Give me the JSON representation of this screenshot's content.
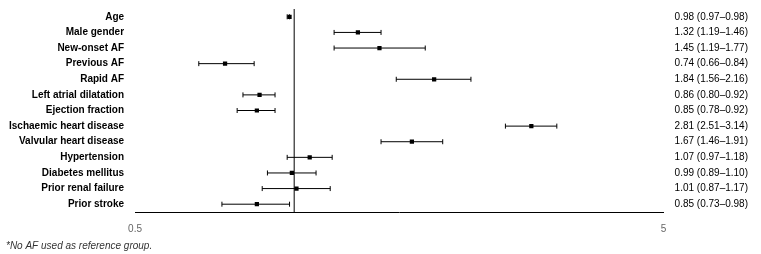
{
  "chart_data": {
    "type": "forest",
    "categories": [
      "Age",
      "Male gender",
      "New-onset AF",
      "Previous AF",
      "Rapid AF",
      "Left atrial dilatation",
      "Ejection fraction",
      "Ischaemic heart disease",
      "Valvular heart disease",
      "Hypertension",
      "Diabetes mellitus",
      "Prior renal failure",
      "Prior stroke"
    ],
    "values": [
      0.98,
      1.32,
      1.45,
      0.74,
      1.84,
      0.86,
      0.85,
      2.81,
      1.67,
      1.07,
      0.99,
      1.01,
      0.85
    ],
    "ci_low": [
      0.97,
      1.19,
      1.19,
      0.66,
      1.56,
      0.8,
      0.78,
      2.51,
      1.46,
      0.97,
      0.89,
      0.87,
      0.73
    ],
    "ci_high": [
      0.98,
      1.46,
      1.77,
      0.84,
      2.16,
      0.92,
      0.92,
      3.14,
      1.91,
      1.18,
      1.1,
      1.17,
      0.98
    ],
    "annotations": [
      "0.98 (0.97–0.98)",
      "1.32 (1.19–1.46)",
      "1.45 (1.19–1.77)",
      "0.74 (0.66–0.84)",
      "1.84 (1.56–2.16)",
      "0.86 (0.80–0.92)",
      "0.85 (0.78–0.92)",
      "2.81 (2.51–3.14)",
      "1.67 (1.46–1.91)",
      "1.07 (0.97–1.18)",
      "0.99 (0.89–1.10)",
      "1.01 (0.87–1.17)",
      "0.85 (0.73–0.98)"
    ],
    "ref_line": 1.0,
    "footnote": "*No AF used as reference group.",
    "xlim": [
      0.5,
      5.0
    ],
    "xticks": [
      0.5,
      5
    ],
    "log": "x",
    "grid": false,
    "color": "#000000"
  }
}
